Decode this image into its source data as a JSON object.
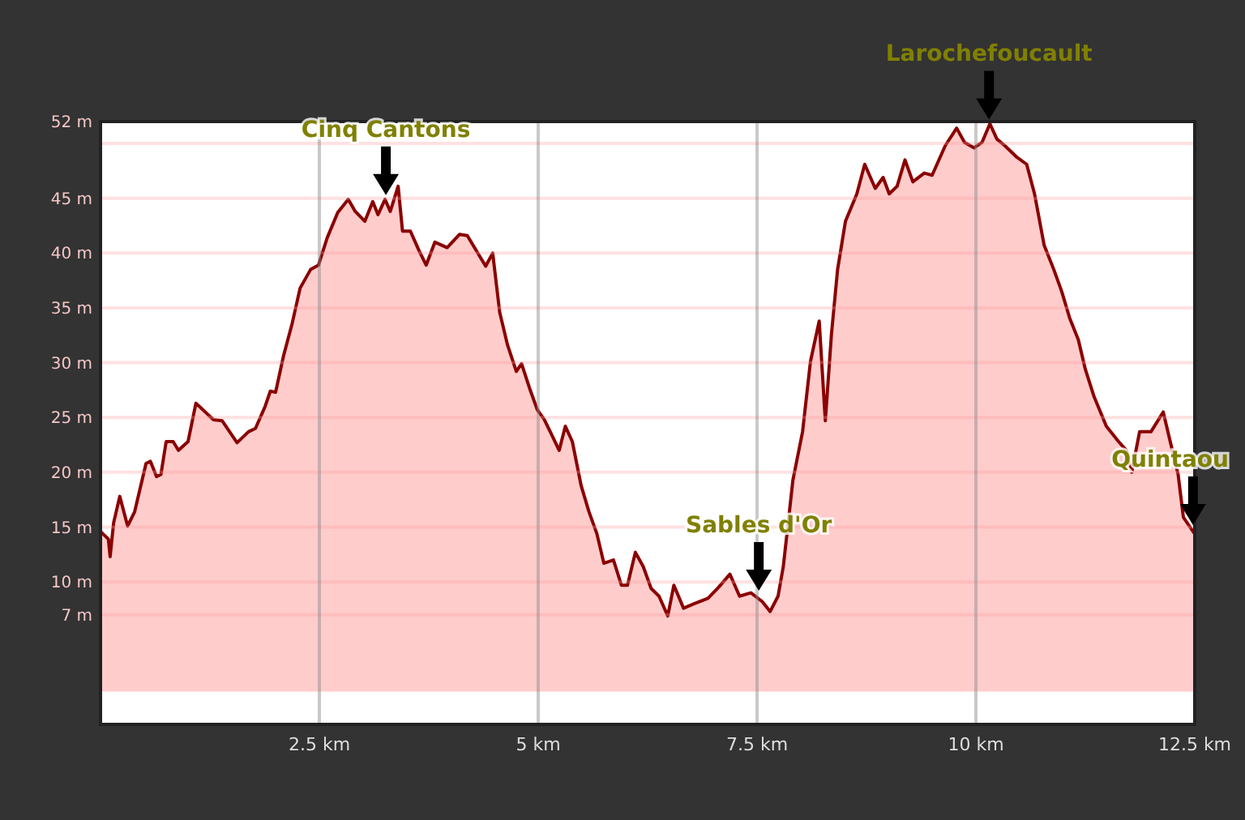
{
  "chart_data": {
    "type": "area",
    "x": [
      0,
      0.09,
      0.11,
      0.15,
      0.22,
      0.31,
      0.39,
      0.52,
      0.57,
      0.64,
      0.69,
      0.75,
      0.83,
      0.89,
      1.0,
      1.09,
      1.17,
      1.29,
      1.39,
      1.56,
      1.69,
      1.77,
      1.88,
      1.94,
      2.0,
      2.09,
      2.19,
      2.28,
      2.4,
      2.49,
      2.59,
      2.71,
      2.83,
      2.91,
      3.02,
      3.11,
      3.17,
      3.25,
      3.31,
      3.4,
      3.45,
      3.54,
      3.64,
      3.72,
      3.82,
      3.96,
      4.1,
      4.19,
      4.4,
      4.48,
      4.56,
      4.65,
      4.75,
      4.81,
      4.9,
      4.99,
      5.07,
      5.15,
      5.24,
      5.31,
      5.39,
      5.49,
      5.58,
      5.67,
      5.75,
      5.86,
      5.95,
      6.02,
      6.11,
      6.2,
      6.29,
      6.38,
      6.48,
      6.55,
      6.66,
      6.78,
      6.94,
      7.06,
      7.19,
      7.3,
      7.43,
      7.56,
      7.65,
      7.74,
      7.8,
      7.91,
      8.02,
      8.11,
      8.21,
      8.28,
      8.35,
      8.42,
      8.51,
      8.64,
      8.73,
      8.85,
      8.94,
      9.01,
      9.1,
      9.19,
      9.28,
      9.41,
      9.5,
      9.65,
      9.78,
      9.87,
      9.98,
      10.07,
      10.16,
      10.24,
      10.33,
      10.46,
      10.58,
      10.67,
      10.78,
      10.89,
      10.98,
      11.07,
      11.17,
      11.25,
      11.35,
      11.49,
      11.63,
      11.72,
      11.78,
      11.87,
      12.0,
      12.14,
      12.22,
      12.31,
      12.37,
      12.49
    ],
    "series": [
      {
        "color": "#8b0000",
        "values": [
          14.6,
          13.9,
          12.3,
          15.4,
          17.8,
          15.1,
          16.4,
          20.8,
          21.0,
          19.6,
          19.8,
          22.8,
          22.8,
          22.0,
          22.8,
          26.3,
          25.7,
          24.8,
          24.7,
          22.7,
          23.7,
          24.0,
          26.0,
          27.4,
          27.3,
          30.6,
          33.6,
          36.8,
          38.5,
          38.9,
          41.4,
          43.7,
          44.9,
          43.8,
          42.9,
          44.7,
          43.5,
          44.9,
          43.8,
          46.1,
          42.0,
          42.0,
          40.2,
          38.9,
          41.0,
          40.5,
          41.7,
          41.6,
          38.8,
          40.0,
          34.6,
          31.6,
          29.2,
          29.9,
          27.7,
          25.7,
          24.8,
          23.5,
          22.0,
          24.2,
          22.8,
          18.8,
          16.4,
          14.4,
          11.7,
          12.0,
          9.7,
          9.7,
          12.7,
          11.4,
          9.4,
          8.7,
          6.9,
          9.7,
          7.6,
          8.0,
          8.5,
          9.5,
          10.7,
          8.7,
          9.0,
          8.2,
          7.3,
          8.7,
          11.4,
          19.3,
          23.7,
          30.1,
          33.8,
          24.7,
          32.6,
          38.5,
          42.9,
          45.4,
          48.1,
          45.9,
          46.9,
          45.4,
          46.1,
          48.5,
          46.5,
          47.3,
          47.1,
          49.8,
          51.4,
          50.1,
          49.6,
          50.1,
          51.8,
          50.4,
          49.8,
          48.8,
          48.1,
          45.4,
          40.7,
          38.5,
          36.5,
          34.1,
          32.1,
          29.4,
          26.9,
          24.2,
          22.8,
          22.0,
          20.0,
          23.7,
          23.7,
          25.5,
          22.8,
          19.8,
          15.9,
          14.5
        ]
      }
    ],
    "xlim": [
      0,
      12.5
    ],
    "xticks": [
      {
        "value": 2.5,
        "label": "2.5 km"
      },
      {
        "value": 5,
        "label": "5 km"
      },
      {
        "value": 7.5,
        "label": "7.5 km"
      },
      {
        "value": 10,
        "label": "10 km"
      },
      {
        "value": 12.5,
        "label": "12.5 km"
      }
    ],
    "ylim": [
      -3,
      52
    ],
    "yticks": [
      {
        "value": 52,
        "label": "52 m"
      },
      {
        "value": 50,
        "label": null
      },
      {
        "value": 45,
        "label": "45 m"
      },
      {
        "value": 40,
        "label": "40 m"
      },
      {
        "value": 35,
        "label": "35 m"
      },
      {
        "value": 30,
        "label": "30 m"
      },
      {
        "value": 25,
        "label": "25 m"
      },
      {
        "value": 20,
        "label": "20 m"
      },
      {
        "value": 15,
        "label": "15 m"
      },
      {
        "value": 10,
        "label": "10 m"
      },
      {
        "value": 7,
        "label": "7 m"
      }
    ],
    "grid": true,
    "annotations": [
      {
        "text": "Cinq Cantons",
        "x": 3.26,
        "y": 44.7
      },
      {
        "text": "Sables d'Or",
        "x": 7.52,
        "y": 8.6
      },
      {
        "text": "Larochefoucault",
        "x": 10.15,
        "y": 51.6
      },
      {
        "text": "Quintaou",
        "x": 12.48,
        "y": 14.6
      }
    ]
  }
}
